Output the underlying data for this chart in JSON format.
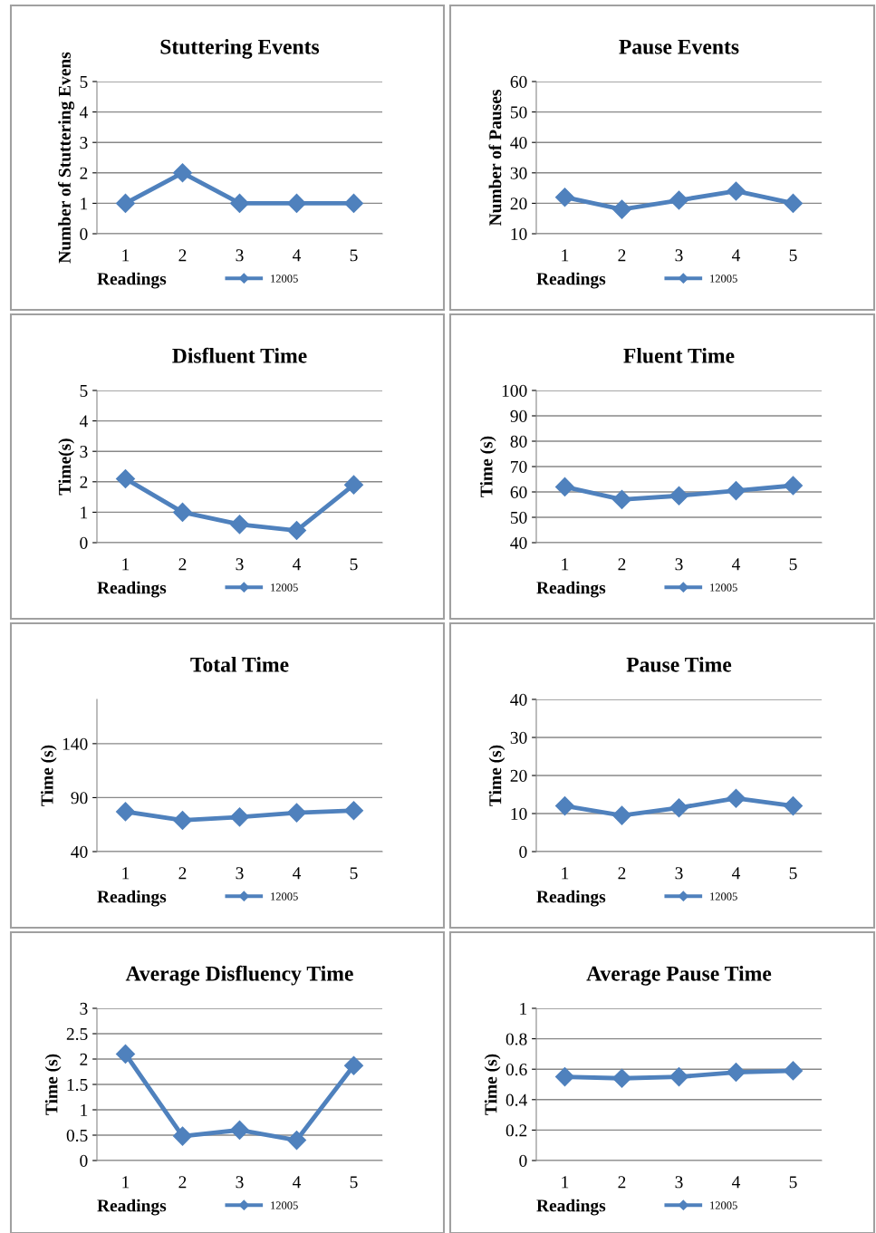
{
  "chart_data": [
    {
      "type": "line",
      "title": "Stuttering Events",
      "xlabel": "Readings",
      "ylabel": "Number of Stuttering Evens",
      "categories": [
        "1",
        "2",
        "3",
        "4",
        "5"
      ],
      "series": [
        {
          "name": "12005",
          "color": "#4f81bd",
          "values": [
            1,
            2,
            1,
            1,
            1
          ]
        }
      ],
      "ylim": [
        0,
        5
      ],
      "yticks": [
        0,
        1,
        2,
        3,
        4,
        5
      ],
      "grid": "y",
      "legend": "bottom",
      "marker": "diamond"
    },
    {
      "type": "line",
      "title": "Pause Events",
      "xlabel": "Readings",
      "ylabel": "Number of Pauses",
      "categories": [
        "1",
        "2",
        "3",
        "4",
        "5"
      ],
      "series": [
        {
          "name": "12005",
          "color": "#4f81bd",
          "values": [
            22,
            18,
            21,
            24,
            20
          ]
        }
      ],
      "ylim": [
        10,
        60
      ],
      "yticks": [
        10,
        20,
        30,
        40,
        50,
        60
      ],
      "grid": "y",
      "legend": "bottom",
      "marker": "diamond"
    },
    {
      "type": "line",
      "title": "Disfluent Time",
      "xlabel": "Readings",
      "ylabel": "Time(s)",
      "categories": [
        "1",
        "2",
        "3",
        "4",
        "5"
      ],
      "series": [
        {
          "name": "12005",
          "color": "#4f81bd",
          "values": [
            2.1,
            1.0,
            0.6,
            0.4,
            1.9
          ]
        }
      ],
      "ylim": [
        0,
        5
      ],
      "yticks": [
        0,
        1,
        2,
        3,
        4,
        5
      ],
      "grid": "y",
      "legend": "bottom",
      "marker": "diamond"
    },
    {
      "type": "line",
      "title": "Fluent Time",
      "xlabel": "Readings",
      "ylabel": "Time (s)",
      "categories": [
        "1",
        "2",
        "3",
        "4",
        "5"
      ],
      "series": [
        {
          "name": "12005",
          "color": "#4f81bd",
          "values": [
            62,
            57,
            58.5,
            60.5,
            62.5
          ]
        }
      ],
      "ylim": [
        40,
        100
      ],
      "yticks": [
        40,
        50,
        60,
        70,
        80,
        90,
        100
      ],
      "grid": "y",
      "legend": "bottom",
      "marker": "diamond"
    },
    {
      "type": "line",
      "title": "Total Time",
      "xlabel": "Readings",
      "ylabel": "Time (s)",
      "categories": [
        "1",
        "2",
        "3",
        "4",
        "5"
      ],
      "series": [
        {
          "name": "12005",
          "color": "#4f81bd",
          "values": [
            77,
            69,
            72,
            76,
            78
          ]
        }
      ],
      "ylim": [
        40,
        181
      ],
      "yticks": [
        40,
        90,
        140
      ],
      "grid": "y",
      "legend": "bottom",
      "marker": "diamond"
    },
    {
      "type": "line",
      "title": "Pause Time",
      "xlabel": "Readings",
      "ylabel": "Time (s)",
      "categories": [
        "1",
        "2",
        "3",
        "4",
        "5"
      ],
      "series": [
        {
          "name": "12005",
          "color": "#4f81bd",
          "values": [
            12,
            9.5,
            11.5,
            14,
            12
          ]
        }
      ],
      "ylim": [
        0,
        40
      ],
      "yticks": [
        0,
        10,
        20,
        30,
        40
      ],
      "grid": "y",
      "legend": "bottom",
      "marker": "diamond"
    },
    {
      "type": "line",
      "title": "Average Disfluency Time",
      "xlabel": "Readings",
      "ylabel": "Time (s)",
      "categories": [
        "1",
        "2",
        "3",
        "4",
        "5"
      ],
      "series": [
        {
          "name": "12005",
          "color": "#4f81bd",
          "values": [
            2.1,
            0.48,
            0.6,
            0.4,
            1.87
          ]
        }
      ],
      "ylim": [
        0,
        3
      ],
      "yticks": [
        0,
        0.5,
        1,
        1.5,
        2,
        2.5,
        3
      ],
      "grid": "y",
      "legend": "bottom",
      "marker": "diamond"
    },
    {
      "type": "line",
      "title": "Average Pause Time",
      "xlabel": "Readings",
      "ylabel": "Time (s)",
      "categories": [
        "1",
        "2",
        "3",
        "4",
        "5"
      ],
      "series": [
        {
          "name": "12005",
          "color": "#4f81bd",
          "values": [
            0.55,
            0.54,
            0.55,
            0.58,
            0.59
          ]
        }
      ],
      "ylim": [
        0,
        1
      ],
      "yticks": [
        0,
        0.2,
        0.4,
        0.6,
        0.8,
        1
      ],
      "grid": "y",
      "legend": "bottom",
      "marker": "diamond"
    }
  ]
}
